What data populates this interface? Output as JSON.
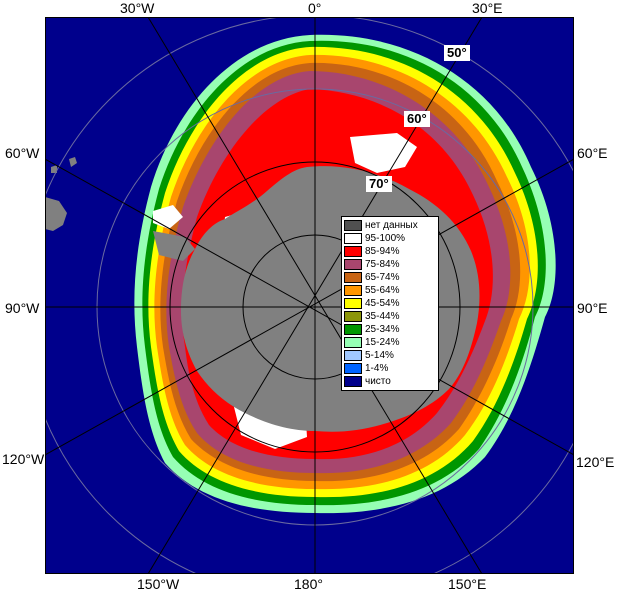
{
  "map": {
    "lon_labels": {
      "top_30w": "30°W",
      "top_0": "0°",
      "top_30e": "30°E",
      "left_60w": "60°W",
      "right_60e": "60°E",
      "left_90w": "90°W",
      "right_90e": "90°E",
      "left_120w": "120°W",
      "right_120e": "120°E",
      "bottom_150w": "150°W",
      "bottom_180": "180°",
      "bottom_150e": "150°E"
    },
    "lat_labels": {
      "lat50": "50°",
      "lat60": "60°",
      "lat70": "70°"
    },
    "colors": {
      "ocean": "#00008c",
      "land": "#808080",
      "no_data": "#505050"
    }
  },
  "legend": {
    "items": [
      {
        "label": "нет данных",
        "color": "#505050"
      },
      {
        "label": "95-100%",
        "color": "#ffffff"
      },
      {
        "label": "85-94%",
        "color": "#ff0000"
      },
      {
        "label": "75-84%",
        "color": "#a8466e"
      },
      {
        "label": "65-74%",
        "color": "#c86414"
      },
      {
        "label": "55-64%",
        "color": "#ff9600"
      },
      {
        "label": "45-54%",
        "color": "#ffff00"
      },
      {
        "label": "35-44%",
        "color": "#8c960a"
      },
      {
        "label": "25-34%",
        "color": "#009600"
      },
      {
        "label": "15-24%",
        "color": "#96ffb4"
      },
      {
        "label": "5-14%",
        "color": "#a0c8ff"
      },
      {
        "label": "1-4%",
        "color": "#0064ff"
      },
      {
        "label": "чисто",
        "color": "#00008c"
      }
    ]
  }
}
